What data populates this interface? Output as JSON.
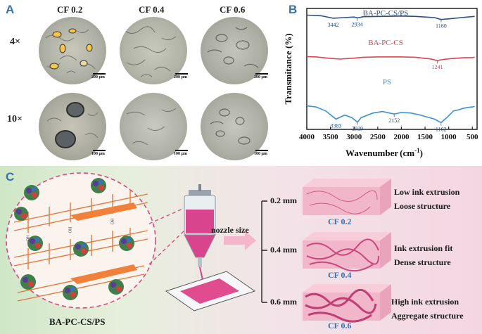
{
  "panelA": {
    "letter": "A",
    "columns": [
      "CF 0.2",
      "CF 0.4",
      "CF 0.6"
    ],
    "rows": [
      "4×",
      "10×"
    ],
    "scale_top": "200 μm",
    "scale_bottom": "100 μm"
  },
  "panelB": {
    "letter": "B",
    "chart_data": {
      "type": "line",
      "title": "",
      "xlabel": "Wavenumber",
      "xlabel_unit": "cm",
      "xlabel_sup": "-1",
      "ylabel": "Transmitance (%)",
      "xlim": [
        4000,
        400
      ],
      "x_ticks": [
        4000,
        3500,
        3000,
        2500,
        2000,
        1500,
        1000,
        500
      ],
      "series": [
        {
          "name": "BA-PC-CS/PS",
          "color": "#2d4f86",
          "x": [
            4000,
            3700,
            3442,
            3200,
            3000,
            2934,
            2800,
            2400,
            2000,
            1700,
            1500,
            1300,
            1160,
            1000,
            800,
            600,
            450
          ],
          "y": [
            0.92,
            0.9,
            0.82,
            0.84,
            0.86,
            0.83,
            0.87,
            0.88,
            0.89,
            0.88,
            0.86,
            0.84,
            0.78,
            0.8,
            0.83,
            0.86,
            0.88
          ]
        },
        {
          "name": "BA-PC-CS",
          "color": "#e0434f",
          "x": [
            4000,
            3800,
            3500,
            3300,
            3000,
            2800,
            2500,
            2000,
            1700,
            1500,
            1400,
            1241,
            1100,
            900,
            700,
            500,
            450
          ],
          "y": [
            0.58,
            0.57,
            0.52,
            0.5,
            0.53,
            0.56,
            0.57,
            0.57,
            0.56,
            0.52,
            0.51,
            0.45,
            0.49,
            0.52,
            0.54,
            0.55,
            0.56
          ]
        },
        {
          "name": "PS",
          "color": "#3f8fd3",
          "x": [
            4000,
            3800,
            3600,
            3383,
            3200,
            3050,
            2929,
            2850,
            2600,
            2400,
            2152,
            2000,
            1800,
            1600,
            1450,
            1300,
            1162,
            1050,
            900,
            800,
            700,
            600,
            500,
            450
          ],
          "y": [
            0.38,
            0.36,
            0.28,
            0.12,
            0.2,
            0.15,
            0.06,
            0.15,
            0.24,
            0.27,
            0.22,
            0.25,
            0.24,
            0.2,
            0.16,
            0.12,
            0.05,
            0.14,
            0.28,
            0.3,
            0.33,
            0.35,
            0.36,
            0.37
          ]
        }
      ],
      "annotations": [
        {
          "text": "3442",
          "series": "BA-PC-CS/PS"
        },
        {
          "text": "2934",
          "series": "BA-PC-CS/PS"
        },
        {
          "text": "1160",
          "series": "BA-PC-CS/PS"
        },
        {
          "text": "1241",
          "series": "BA-PC-CS"
        },
        {
          "text": "2152",
          "series": "PS"
        },
        {
          "text": "3383",
          "series": "PS"
        },
        {
          "text": "2929",
          "series": "PS"
        },
        {
          "text": "1162",
          "series": "PS"
        }
      ]
    }
  },
  "panelC": {
    "letter": "C",
    "composite_label": "BA-PC-CS/PS",
    "chain_label": "OH",
    "nozzle_label": "nozzle size",
    "sizes": [
      "0.2 mm",
      "0.4 mm",
      "0.6 mm"
    ],
    "cf_labels": [
      "CF 0.2",
      "CF 0.4",
      "CF 0.6"
    ],
    "descriptions": [
      {
        "line1": "Low ink extrusion",
        "line2": "Loose structure"
      },
      {
        "line1": "Ink extrusion fit",
        "line2": "Dense structure"
      },
      {
        "line1": "High ink extrusion",
        "line2": "Aggregate structure"
      }
    ]
  }
}
